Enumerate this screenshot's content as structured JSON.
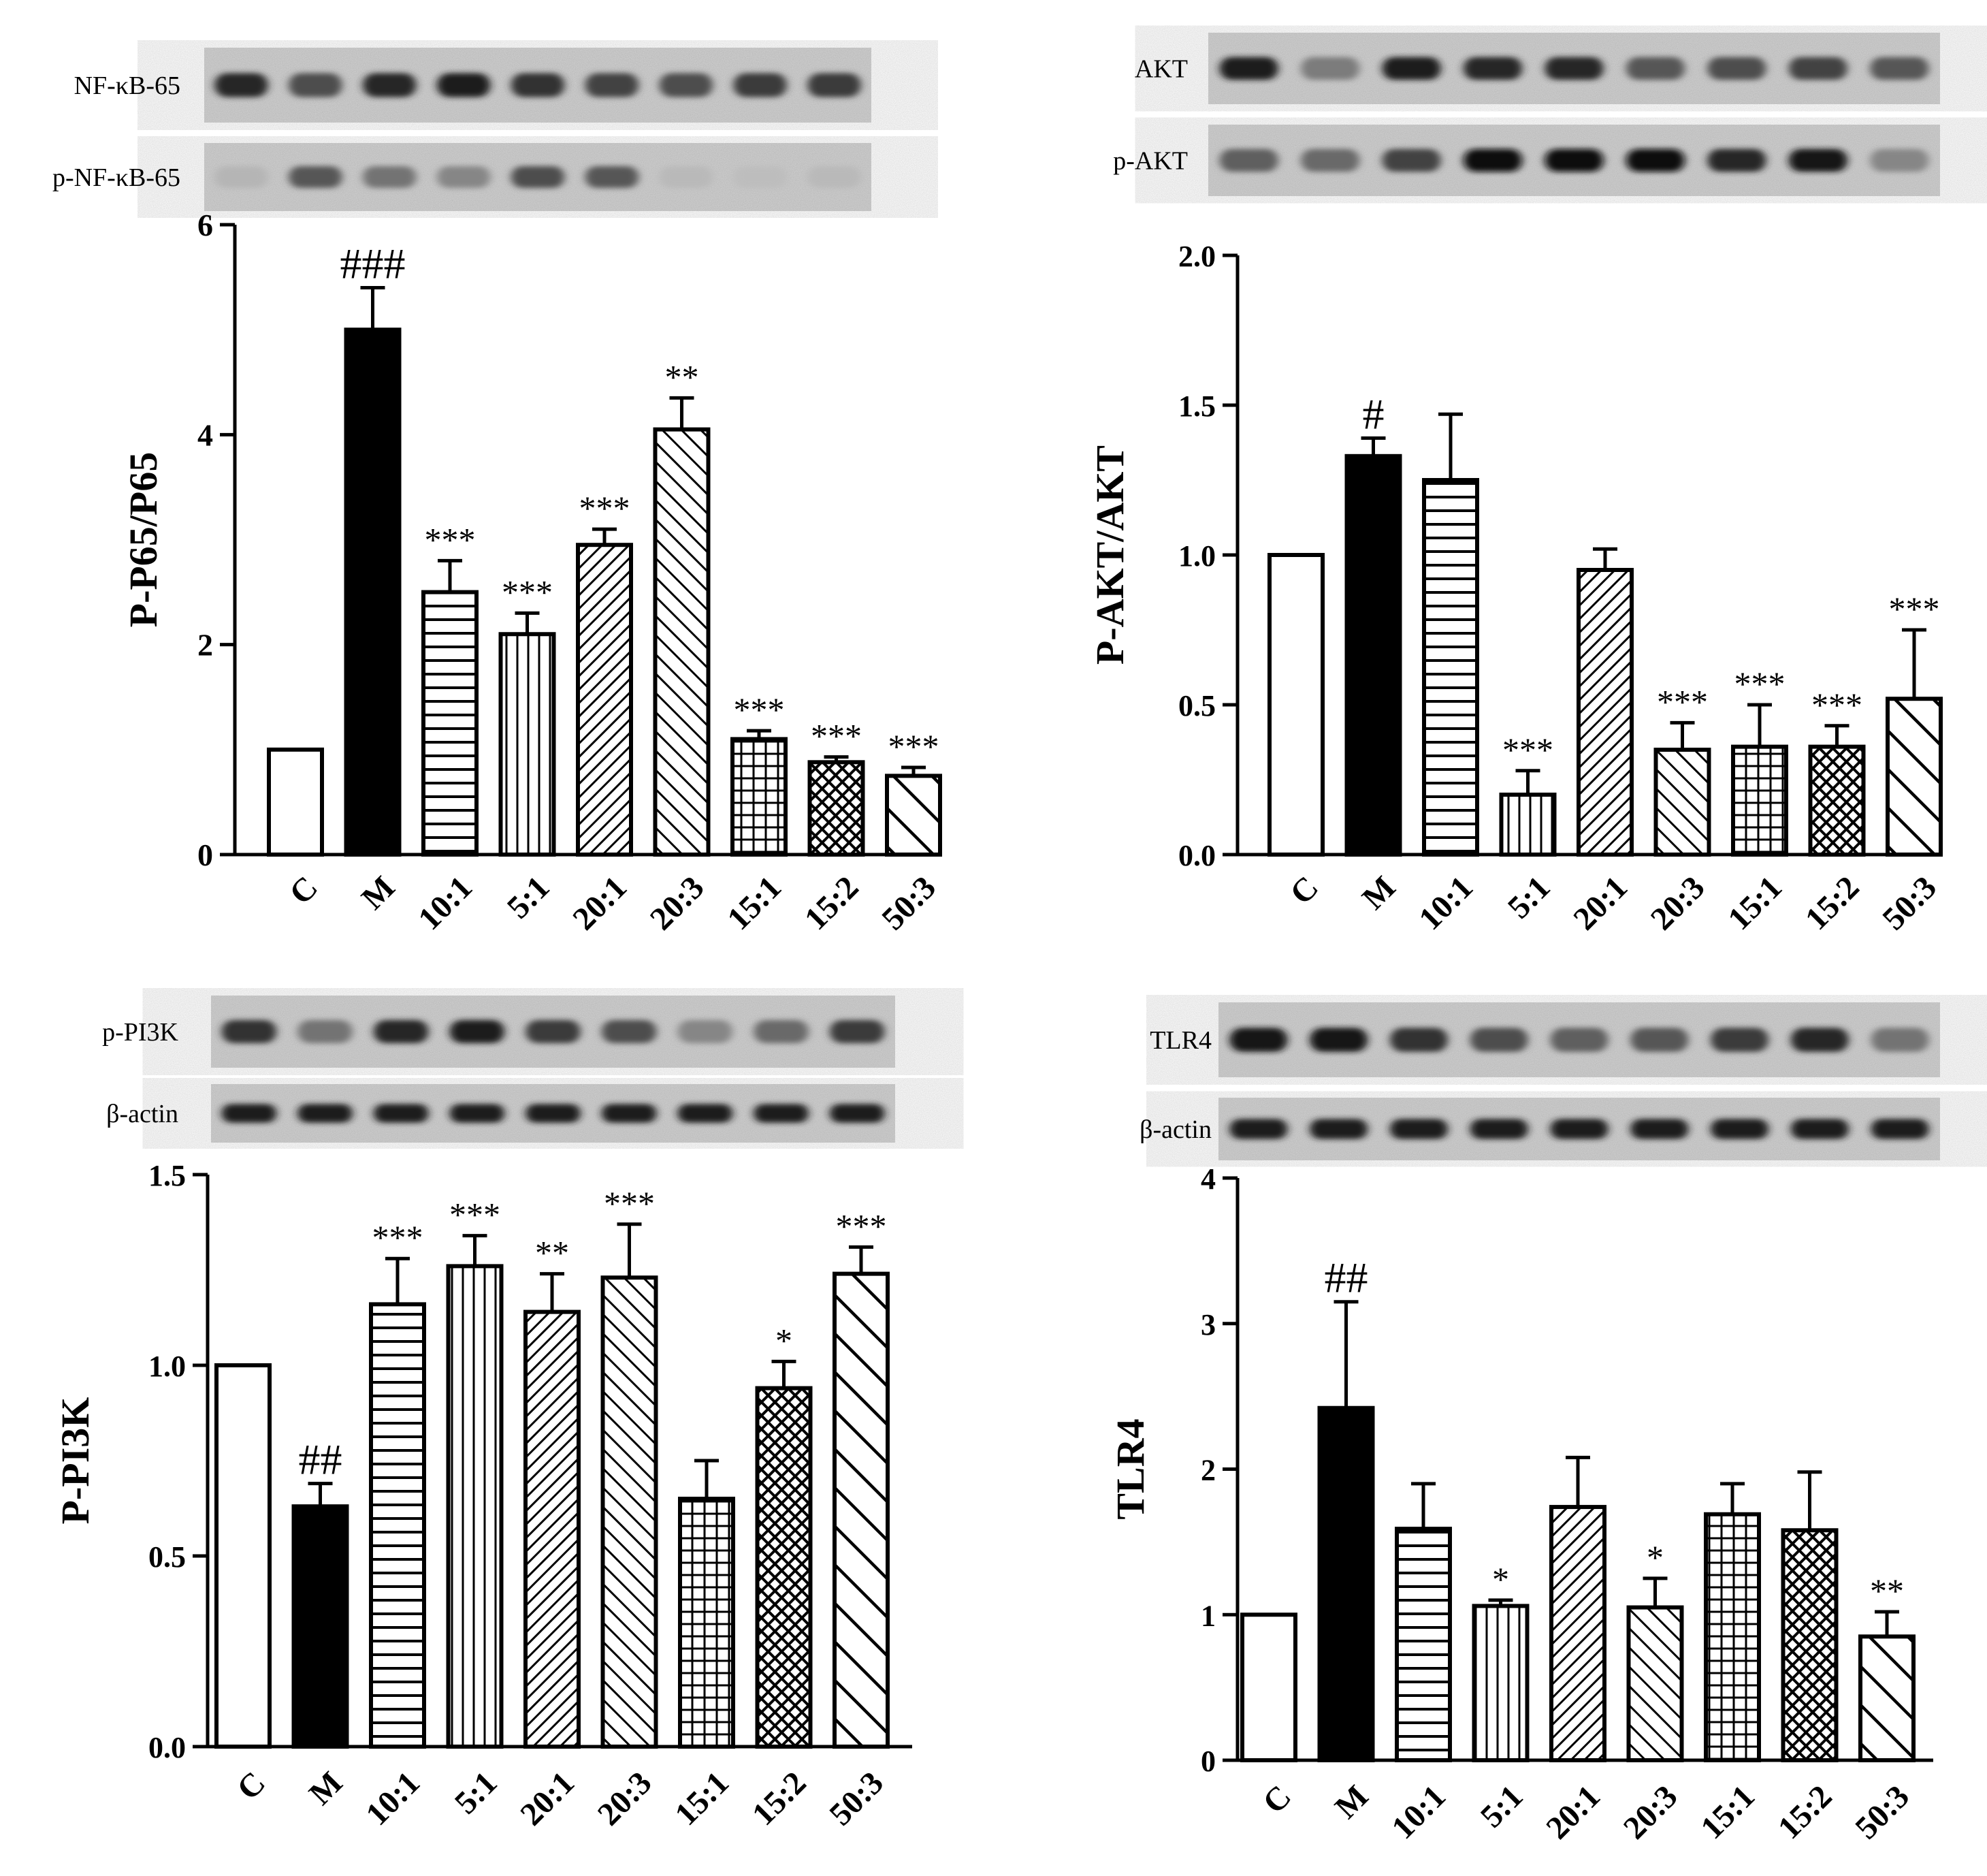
{
  "figure": {
    "categories": [
      "C",
      "M",
      "10:1",
      "5:1",
      "20:1",
      "20:3",
      "15:1",
      "15:2",
      "50:3"
    ],
    "bar_styles": [
      "open",
      "solid",
      "hlines",
      "vlines",
      "diag-fine",
      "diag-wide",
      "grid",
      "crosshatch",
      "diag-bold"
    ]
  },
  "chart_data": [
    {
      "panel": "top-left",
      "type": "bar",
      "ylabel": "P-P65/P65",
      "ylim": [
        0,
        6
      ],
      "yticks": [
        "0",
        "2",
        "4",
        "6"
      ],
      "categories": [
        "C",
        "M",
        "10:1",
        "5:1",
        "20:1",
        "20:3",
        "15:1",
        "15:2",
        "50:3"
      ],
      "values": [
        1.0,
        5.0,
        2.5,
        2.1,
        2.95,
        4.05,
        1.1,
        0.88,
        0.75
      ],
      "errors": [
        0,
        0.4,
        0.3,
        0.2,
        0.15,
        0.3,
        0.08,
        0.05,
        0.08
      ],
      "annotations": [
        "",
        "###",
        "***",
        "***",
        "***",
        "**",
        "***",
        "***",
        "***"
      ],
      "blots": [
        {
          "label": "NF-κB-65",
          "intensities": [
            0.85,
            0.65,
            0.85,
            0.9,
            0.8,
            0.7,
            0.65,
            0.75,
            0.75
          ]
        },
        {
          "label": "p-NF-κB-65",
          "intensities": [
            0.1,
            0.6,
            0.45,
            0.35,
            0.65,
            0.6,
            0.08,
            0.06,
            0.08
          ]
        }
      ]
    },
    {
      "panel": "top-right",
      "type": "bar",
      "ylabel": "P-AKT/AKT",
      "ylim": [
        0,
        2
      ],
      "yticks": [
        "0.0",
        "0.5",
        "1.0",
        "1.5",
        "2.0"
      ],
      "categories": [
        "C",
        "M",
        "10:1",
        "5:1",
        "20:1",
        "20:3",
        "15:1",
        "15:2",
        "50:3"
      ],
      "values": [
        1.0,
        1.33,
        1.25,
        0.2,
        0.95,
        0.35,
        0.36,
        0.36,
        0.52
      ],
      "errors": [
        0,
        0.06,
        0.22,
        0.08,
        0.07,
        0.09,
        0.14,
        0.07,
        0.23
      ],
      "annotations": [
        "",
        "#",
        "",
        "***",
        "",
        "***",
        "***",
        "***",
        "***"
      ],
      "blots": [
        {
          "label": "AKT",
          "intensities": [
            0.9,
            0.4,
            0.9,
            0.85,
            0.85,
            0.6,
            0.65,
            0.7,
            0.6
          ]
        },
        {
          "label": "p-AKT",
          "intensities": [
            0.55,
            0.5,
            0.7,
            1.0,
            1.0,
            1.0,
            0.85,
            0.95,
            0.35
          ]
        }
      ]
    },
    {
      "panel": "bottom-left",
      "type": "bar",
      "ylabel": "P-PI3K",
      "ylim": [
        0,
        1.5
      ],
      "yticks": [
        "0.0",
        "0.5",
        "1.0",
        "1.5"
      ],
      "categories": [
        "C",
        "M",
        "10:1",
        "5:1",
        "20:1",
        "20:3",
        "15:1",
        "15:2",
        "50:3"
      ],
      "values": [
        1.0,
        0.63,
        1.16,
        1.26,
        1.14,
        1.23,
        0.65,
        0.94,
        1.24
      ],
      "errors": [
        0,
        0.06,
        0.12,
        0.08,
        0.1,
        0.14,
        0.1,
        0.07,
        0.07
      ],
      "annotations": [
        "",
        "##",
        "***",
        "***",
        "**",
        "***",
        "",
        "*",
        "***"
      ],
      "blots": [
        {
          "label": "p-PI3K",
          "intensities": [
            0.8,
            0.45,
            0.85,
            0.9,
            0.75,
            0.65,
            0.35,
            0.5,
            0.75
          ]
        },
        {
          "label": "β-actin",
          "intensities": [
            0.9,
            0.9,
            0.9,
            0.9,
            0.9,
            0.9,
            0.9,
            0.9,
            0.9
          ]
        }
      ]
    },
    {
      "panel": "bottom-right",
      "type": "bar",
      "ylabel": "TLR4",
      "ylim": [
        0,
        4
      ],
      "yticks": [
        "0",
        "1",
        "2",
        "3",
        "4"
      ],
      "categories": [
        "C",
        "M",
        "10:1",
        "5:1",
        "20:1",
        "20:3",
        "15:1",
        "15:2",
        "50:3"
      ],
      "values": [
        1.0,
        2.42,
        1.59,
        1.06,
        1.74,
        1.05,
        1.69,
        1.58,
        0.85
      ],
      "errors": [
        0,
        0.73,
        0.31,
        0.04,
        0.34,
        0.2,
        0.21,
        0.4,
        0.17
      ],
      "annotations": [
        "",
        "##",
        "",
        "*",
        "",
        "*",
        "",
        "",
        "**"
      ],
      "blots": [
        {
          "label": "TLR4",
          "intensities": [
            0.95,
            0.95,
            0.8,
            0.65,
            0.55,
            0.6,
            0.75,
            0.85,
            0.45
          ]
        },
        {
          "label": "β-actin",
          "intensities": [
            0.9,
            0.9,
            0.9,
            0.9,
            0.9,
            0.9,
            0.9,
            0.9,
            0.9
          ]
        }
      ]
    }
  ]
}
